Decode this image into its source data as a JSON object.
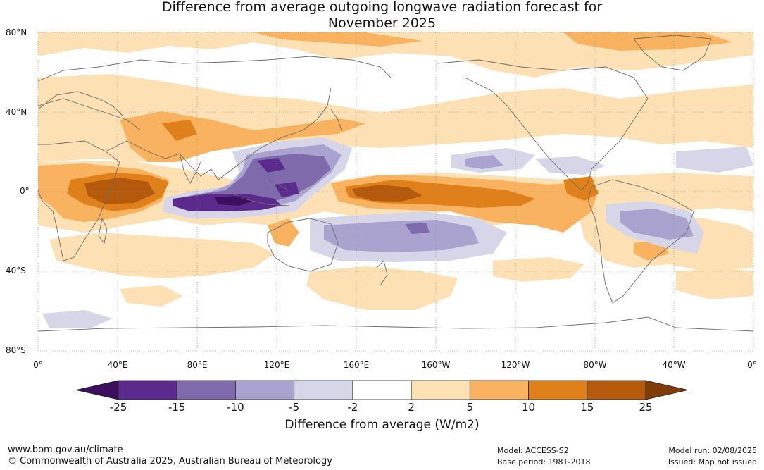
{
  "title_line1": "Difference from average outgoing longwave radiation forecast for",
  "title_line2": "November 2025",
  "lat_labels": [
    "80°N",
    "40°N",
    "0°",
    "40°S",
    "80°S"
  ],
  "lon_labels": [
    "0°",
    "40°E",
    "80°E",
    "120°E",
    "160°E",
    "160°W",
    "120°W",
    "80°W",
    "40°W",
    "0°"
  ],
  "colorbar": {
    "ticks": [
      "-25",
      "-15",
      "-10",
      "-5",
      "-2",
      "2",
      "5",
      "10",
      "15",
      "25"
    ],
    "colors": [
      "#3b0f5e",
      "#5a2b8c",
      "#7f6aab",
      "#aaa2cf",
      "#d7d5e8",
      "#ffffff",
      "#fde0b3",
      "#f9b25f",
      "#e0801a",
      "#b55a0c",
      "#7f3c08"
    ],
    "label": "Difference from average (W/m2)"
  },
  "footer": {
    "website": "www.bom.gov.au/climate",
    "copyright": "© Commonwealth of Australia 2025, Australian Bureau of Meteorology",
    "model": "Model: ACCESS-S2",
    "base_period": "Base period: 1981-2018",
    "model_run": "Model run: 02/08/2025",
    "issued": "Issued: Map not issued"
  }
}
